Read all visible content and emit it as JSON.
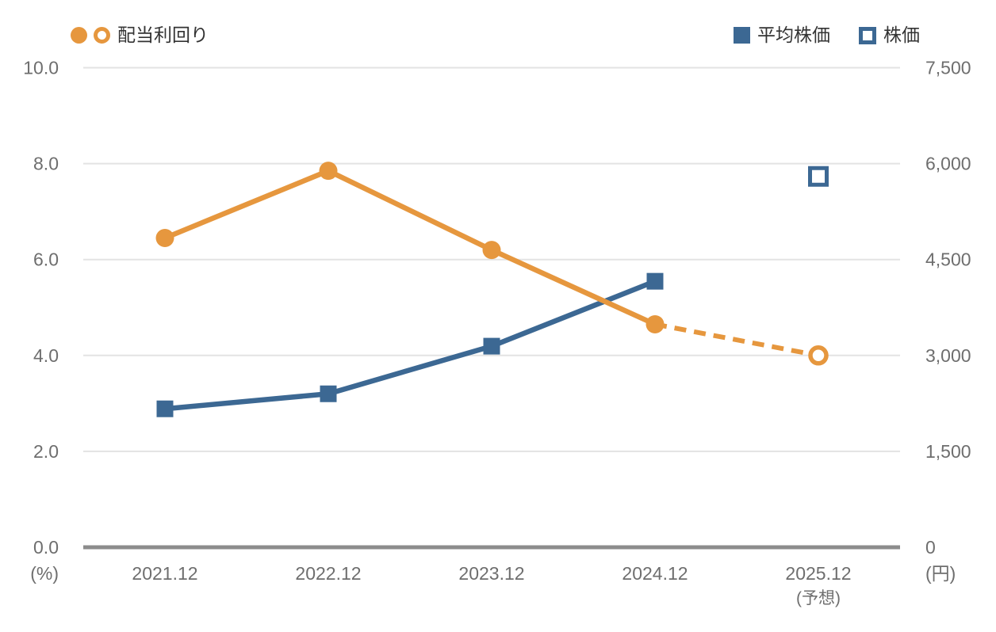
{
  "colors": {
    "orange": "#E6973E",
    "blue": "#3C6893",
    "grid": "#E3E3E3",
    "axis_line": "#8C8C8C",
    "tick_text": "#6E6E6E",
    "legend_text": "#333333",
    "background": "#FFFFFF"
  },
  "legend": {
    "dividend_yield": {
      "label": "配当利回り",
      "markers": [
        "circle-filled",
        "circle-open"
      ]
    },
    "avg_price": {
      "label": "平均株価",
      "marker": "square-filled"
    },
    "price": {
      "label": "株価",
      "marker": "square-open"
    }
  },
  "chart_data": {
    "type": "line",
    "categories": [
      "2021.12",
      "2022.12",
      "2023.12",
      "2024.12",
      "2025.12"
    ],
    "last_category_note": "(予想)",
    "grid": true,
    "legend_position": "top",
    "left_axis": {
      "unit": "(%)",
      "min": 0,
      "max": 10,
      "tick_labels": [
        "10.0",
        "8.0",
        "6.0",
        "4.0",
        "2.0",
        "0.0"
      ]
    },
    "right_axis": {
      "unit": "(円)",
      "min": 0,
      "max": 7500,
      "tick_labels": [
        "7,500",
        "6,000",
        "4,500",
        "3,000",
        "1,500",
        "0"
      ]
    },
    "series": [
      {
        "name": "配当利回り",
        "axis": "left",
        "draw": "line",
        "marker": "circle",
        "color_key": "orange",
        "values": [
          6.45,
          7.85,
          6.2,
          4.65,
          4.0
        ],
        "forecast_last_point": true
      },
      {
        "name": "平均株価",
        "axis": "right",
        "draw": "line",
        "marker": "square",
        "color_key": "blue",
        "values": [
          2165,
          2400,
          3145,
          4160,
          null
        ],
        "forecast_last_point": false
      },
      {
        "name": "株価",
        "axis": "right",
        "draw": "points",
        "marker": "square-open",
        "color_key": "blue",
        "values": [
          null,
          null,
          null,
          null,
          5800
        ],
        "forecast_last_point": false
      }
    ]
  }
}
